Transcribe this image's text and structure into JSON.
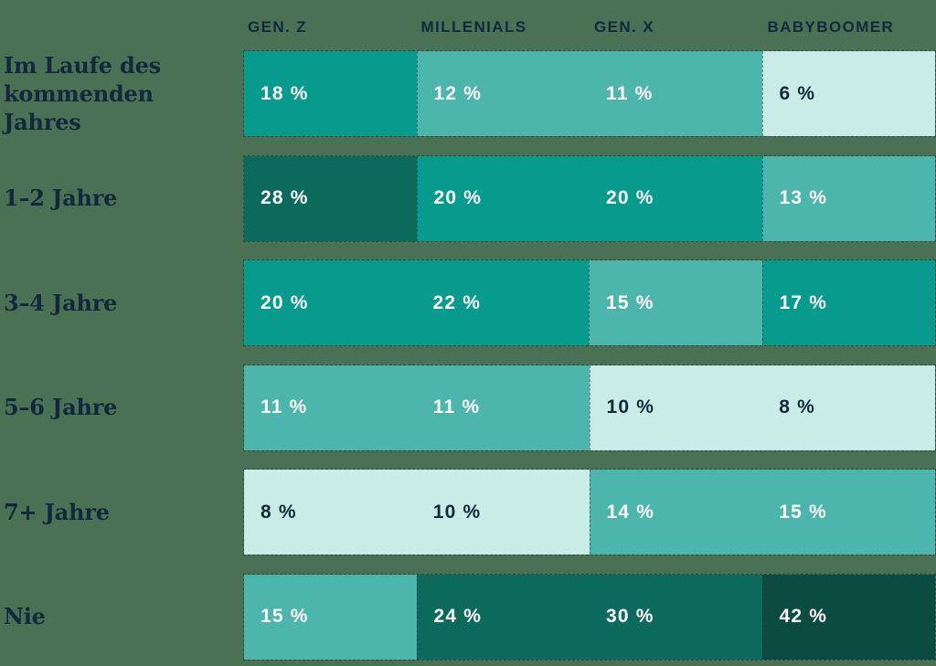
{
  "colors": {
    "background": "#4a7154",
    "label_text": "#13293b",
    "cell_text_light": "#ffffff",
    "cell_text_dark": "#13293b",
    "scale_lightest": "#c9ece6",
    "scale_medium": "#4db6ac",
    "scale_bright": "#069b8d",
    "scale_dark": "#0c6a5c",
    "scale_darkest": "#0a4c41"
  },
  "chart_data": {
    "type": "heatmap",
    "title": "",
    "unit": "%",
    "legend_position": "none",
    "columns": [
      "GEN. Z",
      "MILLENIALS",
      "GEN. X",
      "BABYBOOMER"
    ],
    "row_labels": [
      "Im Laufe des kommenden Jahres",
      "1–2 Jahre",
      "3–4 Jahre",
      "5–6 Jahre",
      "7+ Jahre",
      "Nie"
    ],
    "rows": [
      {
        "label": "Im Laufe des kommenden Jahres",
        "values": [
          18,
          12,
          11,
          6
        ],
        "cells": [
          {
            "v": "18 %",
            "bg": "#069b8d",
            "fg": "#ffffff"
          },
          {
            "v": "12 %",
            "bg": "#4db6ac",
            "fg": "#ffffff"
          },
          {
            "v": "11 %",
            "bg": "#4db6ac",
            "fg": "#ffffff"
          },
          {
            "v": "6 %",
            "bg": "#c9ece6",
            "fg": "#13293b"
          }
        ]
      },
      {
        "label": "1–2 Jahre",
        "values": [
          28,
          20,
          20,
          13
        ],
        "cells": [
          {
            "v": "28 %",
            "bg": "#0c6a5c",
            "fg": "#ffffff"
          },
          {
            "v": "20 %",
            "bg": "#069b8d",
            "fg": "#ffffff"
          },
          {
            "v": "20 %",
            "bg": "#069b8d",
            "fg": "#ffffff"
          },
          {
            "v": "13 %",
            "bg": "#4db6ac",
            "fg": "#ffffff"
          }
        ]
      },
      {
        "label": "3–4 Jahre",
        "values": [
          20,
          22,
          15,
          17
        ],
        "cells": [
          {
            "v": "20 %",
            "bg": "#069b8d",
            "fg": "#ffffff"
          },
          {
            "v": "22 %",
            "bg": "#069b8d",
            "fg": "#ffffff"
          },
          {
            "v": "15 %",
            "bg": "#4db6ac",
            "fg": "#ffffff"
          },
          {
            "v": "17 %",
            "bg": "#069b8d",
            "fg": "#ffffff"
          }
        ]
      },
      {
        "label": "5–6 Jahre",
        "values": [
          11,
          11,
          10,
          8
        ],
        "cells": [
          {
            "v": "11 %",
            "bg": "#4db6ac",
            "fg": "#ffffff"
          },
          {
            "v": "11 %",
            "bg": "#4db6ac",
            "fg": "#ffffff"
          },
          {
            "v": "10 %",
            "bg": "#c9ece6",
            "fg": "#13293b"
          },
          {
            "v": "8 %",
            "bg": "#c9ece6",
            "fg": "#13293b"
          }
        ]
      },
      {
        "label": "7+ Jahre",
        "values": [
          8,
          10,
          14,
          15
        ],
        "cells": [
          {
            "v": "8 %",
            "bg": "#c9ece6",
            "fg": "#13293b"
          },
          {
            "v": "10 %",
            "bg": "#c9ece6",
            "fg": "#13293b"
          },
          {
            "v": "14 %",
            "bg": "#4db6ac",
            "fg": "#ffffff"
          },
          {
            "v": "15 %",
            "bg": "#4db6ac",
            "fg": "#ffffff"
          }
        ]
      },
      {
        "label": "Nie",
        "values": [
          15,
          24,
          30,
          42
        ],
        "cells": [
          {
            "v": "15 %",
            "bg": "#4db6ac",
            "fg": "#ffffff"
          },
          {
            "v": "24 %",
            "bg": "#0c6a5c",
            "fg": "#ffffff"
          },
          {
            "v": "30 %",
            "bg": "#0c6a5c",
            "fg": "#ffffff"
          },
          {
            "v": "42 %",
            "bg": "#0a4c41",
            "fg": "#ffffff"
          }
        ]
      }
    ]
  }
}
